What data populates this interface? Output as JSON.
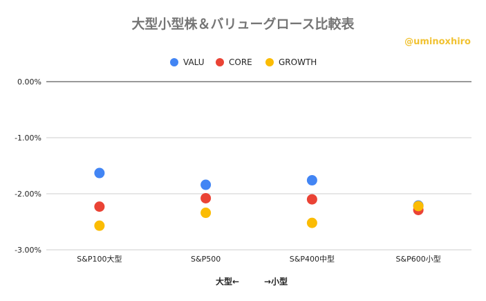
{
  "title": "大型小型株＆バリューグロース比較表",
  "credit": "@uminoxhiro",
  "chart_data": {
    "type": "scatter",
    "title": "大型小型株＆バリューグロース比較表",
    "xlabel": "大型←　　　→小型",
    "ylabel": "",
    "categories": [
      "S&P100大型",
      "S&P500",
      "S&P400中型",
      "S&P600小型"
    ],
    "series": [
      {
        "name": "VALU",
        "color": "#4285f4",
        "values": [
          -1.63,
          -1.84,
          -1.76,
          -2.21
        ]
      },
      {
        "name": "CORE",
        "color": "#ea4335",
        "values": [
          -2.23,
          -2.08,
          -2.1,
          -2.29
        ]
      },
      {
        "name": "GROWTH",
        "color": "#fbbc04",
        "values": [
          -2.57,
          -2.34,
          -2.52,
          -2.22
        ]
      }
    ],
    "ylim": [
      -3.0,
      0.0
    ],
    "yticks": [
      "0.00%",
      "-1.00%",
      "-2.00%",
      "-3.00%"
    ],
    "ytick_values": [
      0,
      -1,
      -2,
      -3
    ],
    "grid": true,
    "legend_position": "top"
  }
}
